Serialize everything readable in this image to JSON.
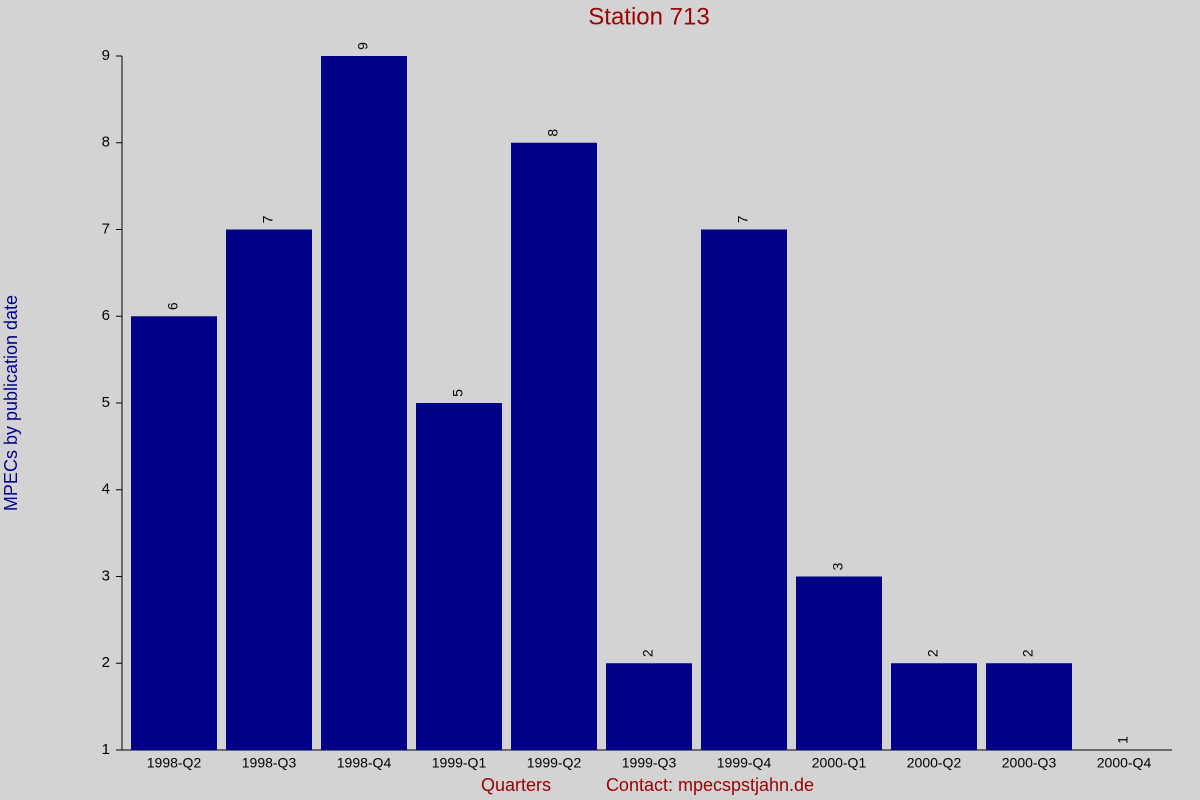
{
  "chart_data": {
    "type": "bar",
    "title": "Station 713",
    "y_label": "MPECs by publication date",
    "x_label": "Quarters",
    "note": "Contact: mpecspstjahn.de",
    "categories": [
      "1998-Q2",
      "1998-Q3",
      "1998-Q4",
      "1999-Q1",
      "1999-Q2",
      "1999-Q3",
      "1999-Q4",
      "2000-Q1",
      "2000-Q2",
      "2000-Q3",
      "2000-Q4"
    ],
    "values": [
      6,
      7,
      9,
      5,
      8,
      2,
      7,
      3,
      2,
      2,
      1
    ],
    "color": "#000088",
    "ylim": [
      1,
      9
    ],
    "yticks": [
      1,
      2,
      3,
      4,
      5,
      6,
      7,
      8,
      9
    ]
  }
}
